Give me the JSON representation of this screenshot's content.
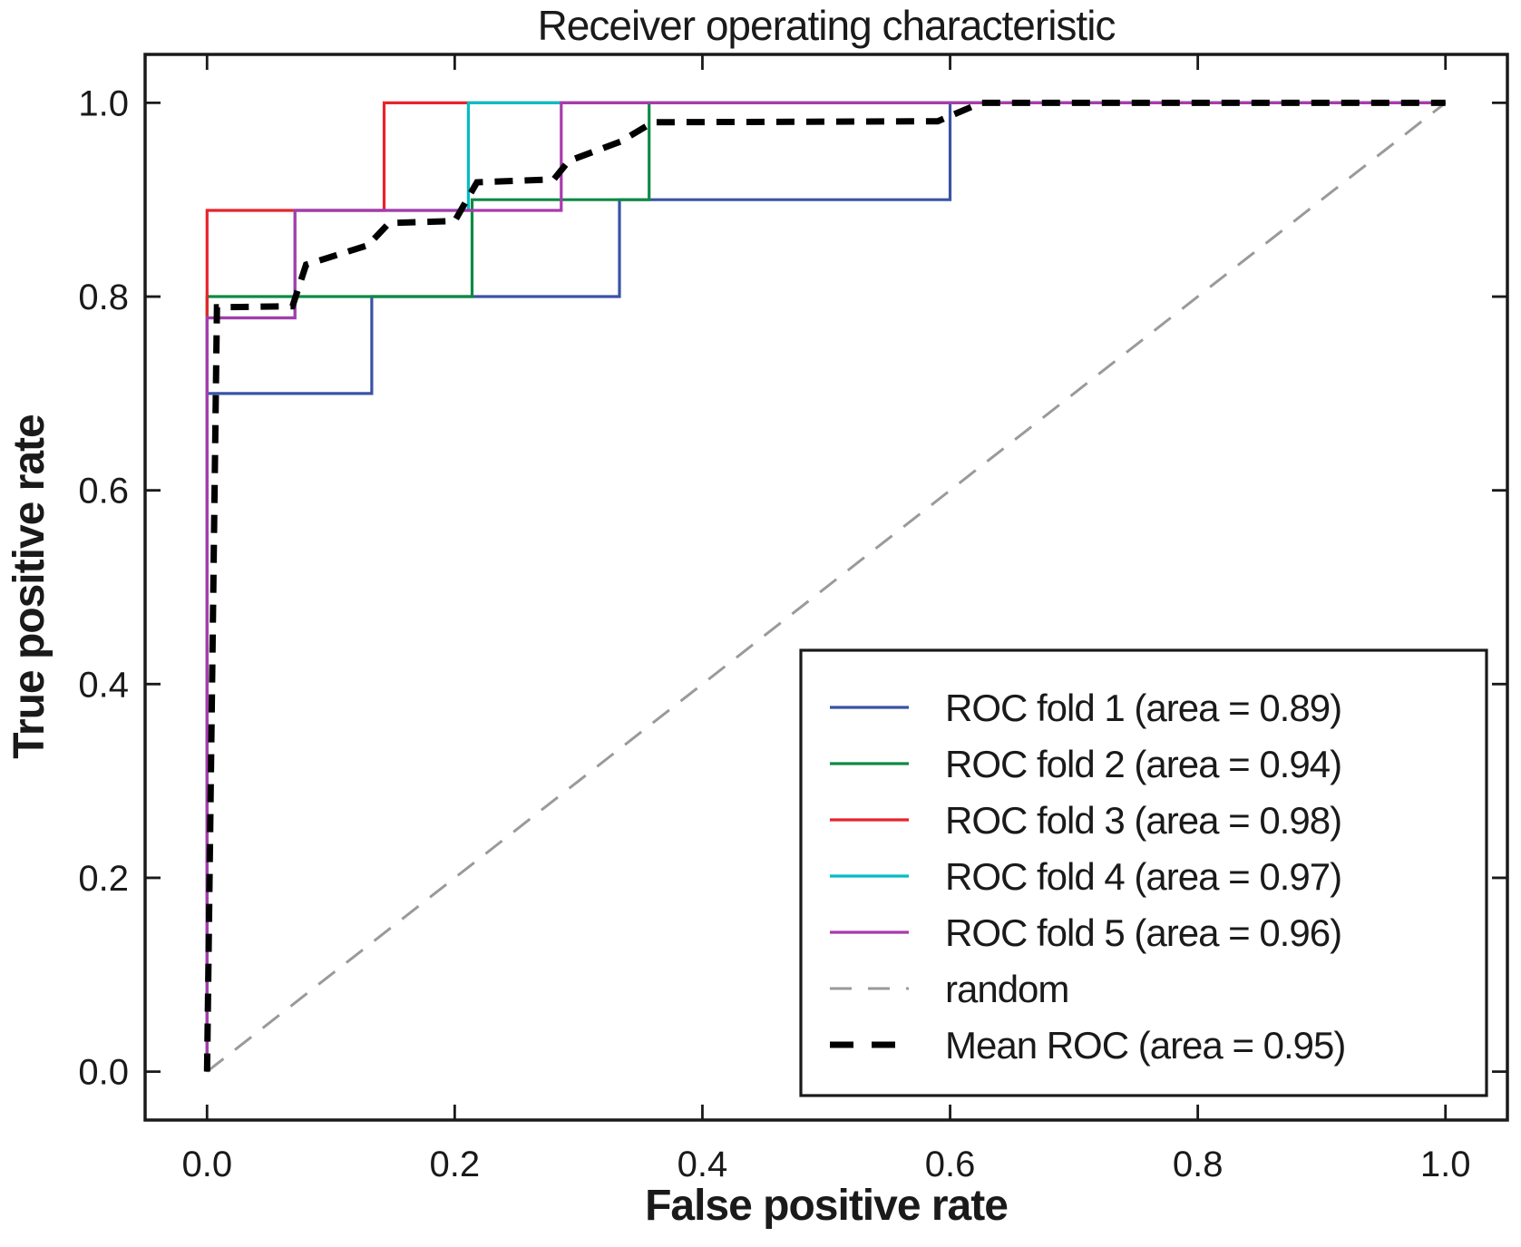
{
  "title": "Receiver operating characteristic",
  "axes": {
    "xlabel": "False positive rate",
    "ylabel": "True positive rate"
  },
  "colors": {
    "fold1": "#3a53a4",
    "fold2": "#0e8a43",
    "fold3": "#e8232a",
    "fold4": "#06bcc3",
    "fold5": "#a93aac",
    "random": "#9a9a9a",
    "mean": "#000000",
    "spine": "#1a1a1a",
    "legend_background": "#ffffff"
  },
  "chart_data": {
    "type": "line",
    "title": "Receiver operating characteristic",
    "xlabel": "False positive rate",
    "ylabel": "True positive rate",
    "xlim": [
      -0.05,
      1.05
    ],
    "ylim": [
      -0.05,
      1.05
    ],
    "xticks": [
      0.0,
      0.2,
      0.4,
      0.6,
      0.8,
      1.0
    ],
    "yticks": [
      0.0,
      0.2,
      0.4,
      0.6,
      0.8,
      1.0
    ],
    "xtick_labels": [
      "0.0",
      "0.2",
      "0.4",
      "0.6",
      "0.8",
      "1.0"
    ],
    "ytick_labels": [
      "0.0",
      "0.2",
      "0.4",
      "0.6",
      "0.8",
      "1.0"
    ],
    "grid": false,
    "legend_position": "lower right",
    "series": [
      {
        "name": "ROC fold 1 (area = 0.89)",
        "key": "roc-fold-1",
        "color": "#3a53a4",
        "style": "solid",
        "width": 3.2,
        "points": [
          [
            0,
            0
          ],
          [
            0,
            0.7
          ],
          [
            0.133,
            0.7
          ],
          [
            0.133,
            0.8
          ],
          [
            0.333,
            0.8
          ],
          [
            0.333,
            0.9
          ],
          [
            0.6,
            0.9
          ],
          [
            0.6,
            1.0
          ],
          [
            1,
            1
          ]
        ]
      },
      {
        "name": "ROC fold 2 (area = 0.94)",
        "key": "roc-fold-2",
        "color": "#0e8a43",
        "style": "solid",
        "width": 3.2,
        "points": [
          [
            0,
            0
          ],
          [
            0,
            0.8
          ],
          [
            0.214,
            0.8
          ],
          [
            0.214,
            0.9
          ],
          [
            0.357,
            0.9
          ],
          [
            0.357,
            1.0
          ],
          [
            1,
            1
          ]
        ]
      },
      {
        "name": "ROC fold 3 (area = 0.98)",
        "key": "roc-fold-3",
        "color": "#e8232a",
        "style": "solid",
        "width": 3.2,
        "points": [
          [
            0,
            0
          ],
          [
            0,
            0.889
          ],
          [
            0.143,
            0.889
          ],
          [
            0.143,
            1.0
          ],
          [
            1,
            1
          ]
        ]
      },
      {
        "name": "ROC fold 4 (area = 0.97)",
        "key": "roc-fold-4",
        "color": "#06bcc3",
        "style": "solid",
        "width": 3.2,
        "points": [
          [
            0,
            0
          ],
          [
            0,
            0.778
          ],
          [
            0.071,
            0.778
          ],
          [
            0.071,
            0.889
          ],
          [
            0.211,
            0.889
          ],
          [
            0.211,
            1.0
          ],
          [
            1,
            1
          ]
        ]
      },
      {
        "name": "ROC fold 5 (area = 0.96)",
        "key": "roc-fold-5",
        "color": "#a93aac",
        "style": "solid",
        "width": 3.2,
        "points": [
          [
            0,
            0
          ],
          [
            0,
            0.778
          ],
          [
            0.071,
            0.778
          ],
          [
            0.071,
            0.889
          ],
          [
            0.286,
            0.889
          ],
          [
            0.286,
            1.0
          ],
          [
            1,
            1
          ]
        ]
      },
      {
        "name": "random",
        "key": "random",
        "color": "#9a9a9a",
        "style": "dashed",
        "width": 3,
        "points": [
          [
            0,
            0
          ],
          [
            1,
            1
          ]
        ]
      },
      {
        "name": "Mean ROC (area = 0.95)",
        "key": "mean-roc",
        "color": "#000000",
        "style": "dashed-bold",
        "width": 7,
        "points": [
          [
            0,
            0
          ],
          [
            0.008,
            0.789
          ],
          [
            0.069,
            0.79
          ],
          [
            0.08,
            0.833
          ],
          [
            0.13,
            0.853
          ],
          [
            0.147,
            0.876
          ],
          [
            0.2,
            0.878
          ],
          [
            0.218,
            0.918
          ],
          [
            0.28,
            0.921
          ],
          [
            0.292,
            0.94
          ],
          [
            0.334,
            0.96
          ],
          [
            0.36,
            0.98
          ],
          [
            0.59,
            0.981
          ],
          [
            0.625,
            1.0
          ],
          [
            1,
            1
          ]
        ]
      }
    ],
    "legend_entries": [
      "ROC fold 1 (area = 0.89)",
      "ROC fold 2 (area = 0.94)",
      "ROC fold 3 (area = 0.98)",
      "ROC fold 4 (area = 0.97)",
      "ROC fold 5 (area = 0.96)",
      "random",
      "Mean ROC (area = 0.95)"
    ]
  }
}
